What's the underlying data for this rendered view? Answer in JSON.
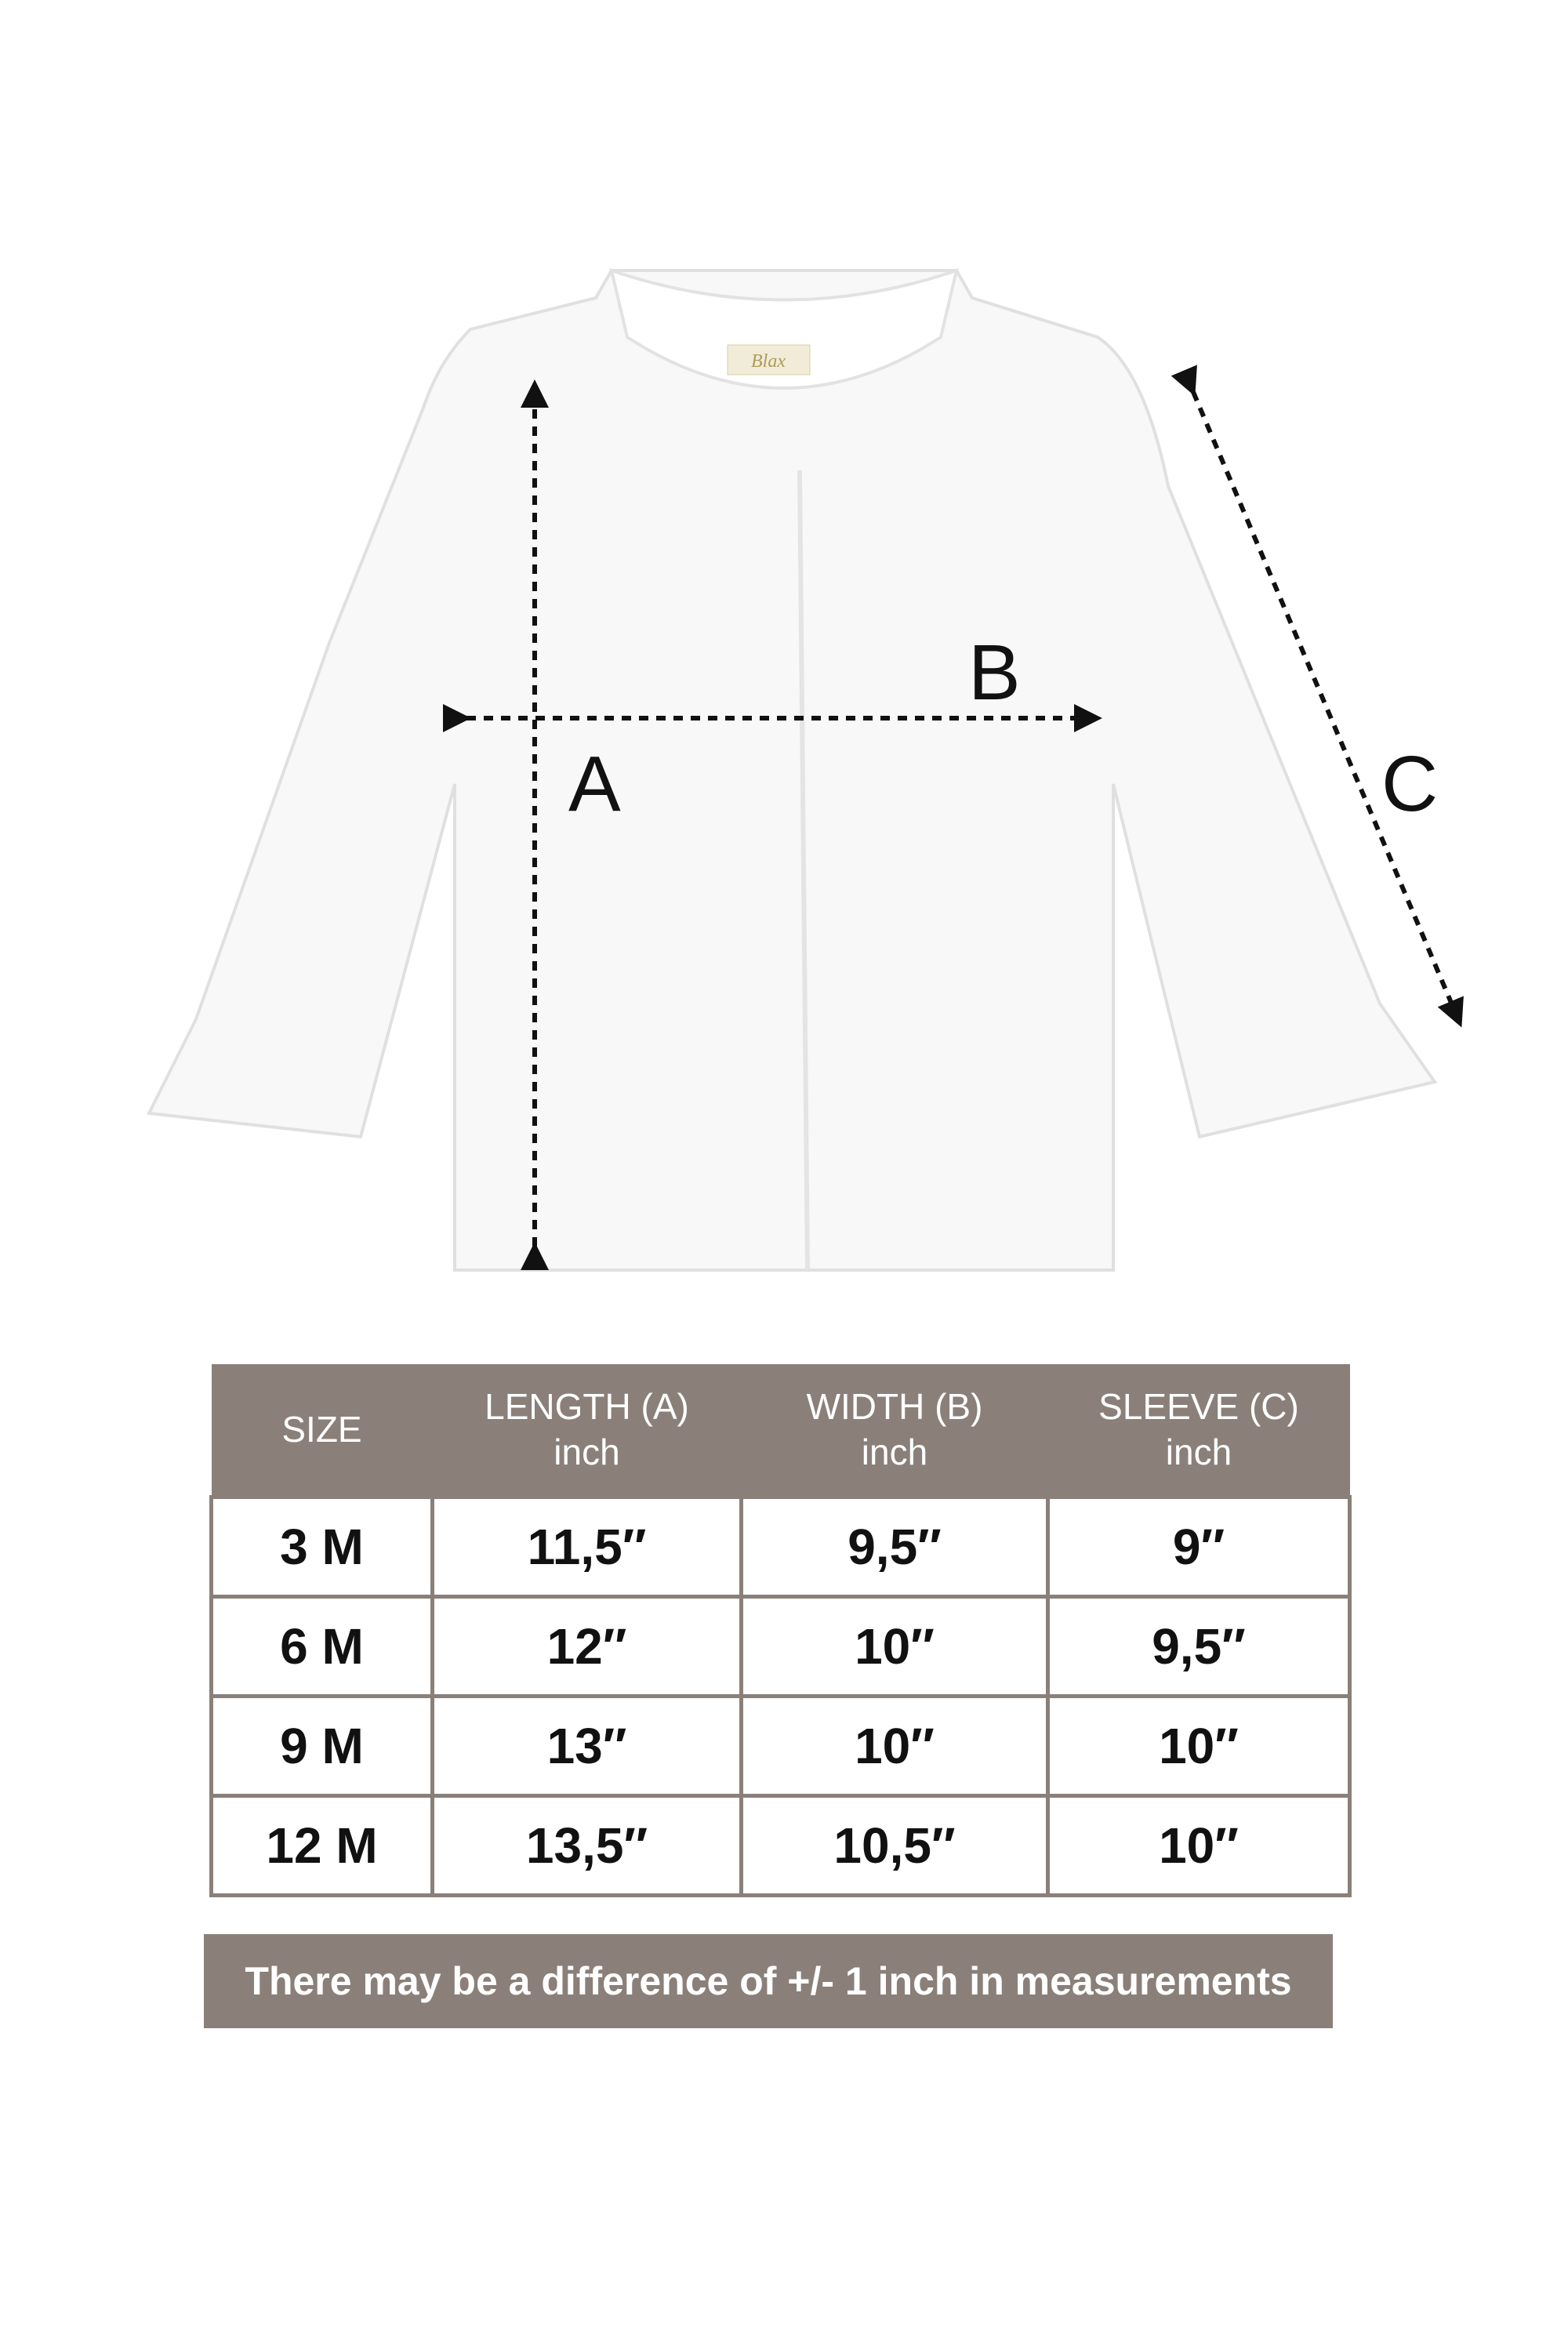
{
  "brand_logo": "Blax",
  "diagram_labels": {
    "length": "A",
    "width": "B",
    "sleeve": "C"
  },
  "table": {
    "headers": [
      {
        "title": "SIZE",
        "unit": ""
      },
      {
        "title": "LENGTH (A)",
        "unit": "inch"
      },
      {
        "title": "WIDTH (B)",
        "unit": "inch"
      },
      {
        "title": "SLEEVE (C)",
        "unit": "inch"
      }
    ],
    "rows": [
      [
        "3 M",
        "11,5″",
        "9,5″",
        "9″"
      ],
      [
        "6 M",
        "12″",
        "10″",
        "9,5″"
      ],
      [
        "9 M",
        "13″",
        "10″",
        "10″"
      ],
      [
        "12 M",
        "13,5″",
        "10,5″",
        "10″"
      ]
    ]
  },
  "note": "There may be a difference of +/- 1 inch in measurements",
  "colors": {
    "table_header": "#8a8079",
    "arrow": "#111111"
  }
}
